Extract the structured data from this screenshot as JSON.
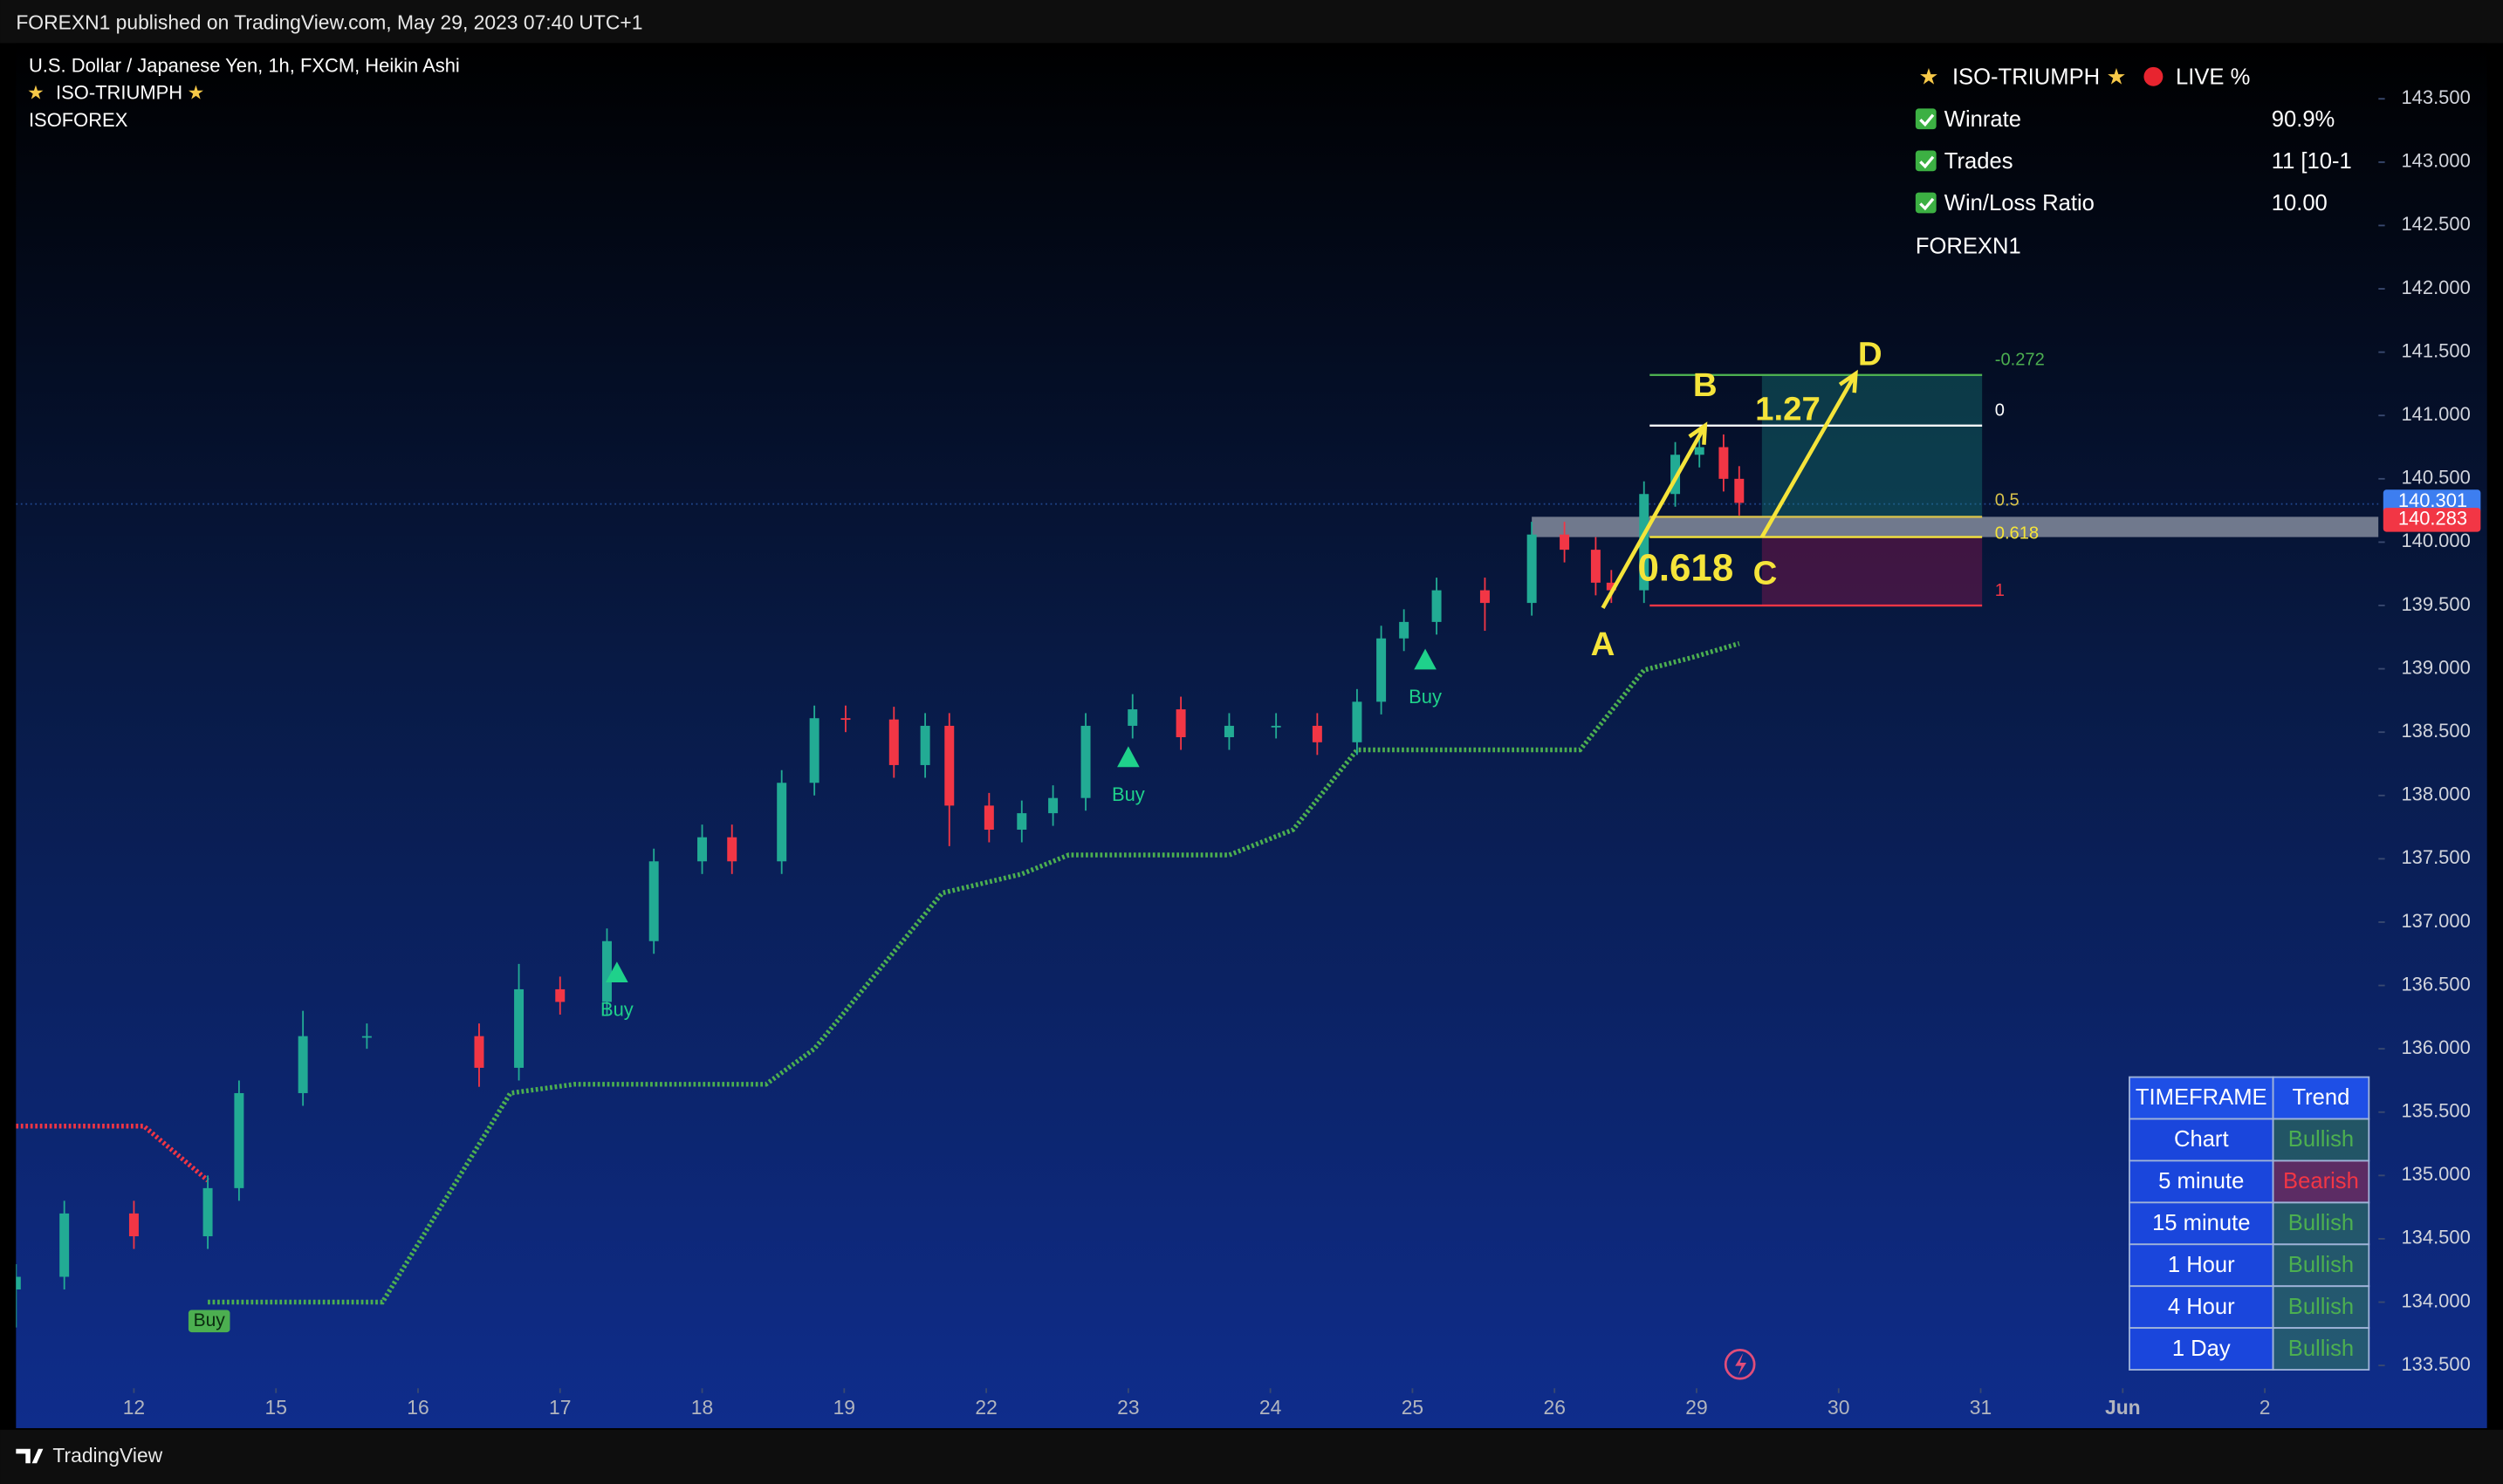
{
  "header": {
    "publisher": "FOREXN1 published on TradingView.com, May 29, 2023 07:40 UTC+1",
    "footer": "TradingView"
  },
  "chart_data": {
    "type": "candlestick",
    "title": "U.S. Dollar / Japanese Yen, 1h, FXCM, Heikin Ashi",
    "indicators": [
      "ISO-TRIUMPH",
      "ISOFOREX"
    ],
    "x": [
      -0.83,
      -0.49,
      0,
      0.52,
      0.74,
      1.19,
      1.64,
      2.43,
      2.71,
      3.0,
      3.33,
      3.66,
      4.0,
      4.21,
      4.56,
      4.79,
      5.01,
      5.35,
      5.57,
      5.74,
      6.02,
      6.25,
      6.47,
      6.7,
      7.03,
      7.37,
      7.71,
      8.04,
      8.33,
      8.61,
      8.78,
      8.94,
      9.17,
      9.51,
      9.84,
      10.07,
      10.29,
      10.4,
      10.63,
      10.85,
      11.02,
      11.19,
      11.3
    ],
    "open": [
      134.1,
      134.2,
      134.7,
      134.52,
      134.9,
      135.65,
      136.1,
      136.1,
      135.85,
      136.47,
      136.37,
      136.85,
      137.48,
      137.67,
      137.48,
      138.1,
      138.61,
      138.6,
      138.24,
      138.55,
      137.92,
      137.73,
      137.86,
      137.98,
      138.55,
      138.68,
      138.46,
      138.55,
      138.55,
      138.42,
      138.74,
      139.24,
      139.37,
      139.62,
      139.52,
      140.06,
      139.94,
      139.68,
      139.62,
      140.38,
      140.69,
      140.75,
      140.5
    ],
    "high": [
      134.3,
      134.8,
      134.8,
      135.0,
      135.75,
      136.3,
      136.2,
      136.2,
      136.67,
      136.57,
      136.95,
      137.58,
      137.77,
      137.77,
      138.2,
      138.71,
      138.71,
      138.7,
      138.65,
      138.65,
      138.02,
      137.96,
      138.08,
      138.65,
      138.8,
      138.78,
      138.65,
      138.65,
      138.65,
      138.84,
      139.34,
      139.47,
      139.72,
      139.72,
      140.16,
      140.16,
      140.04,
      139.78,
      140.48,
      140.79,
      140.9,
      140.85,
      140.6
    ],
    "low": [
      133.8,
      134.1,
      134.42,
      134.42,
      134.8,
      135.55,
      136.0,
      135.7,
      135.75,
      136.27,
      136.27,
      136.75,
      137.38,
      137.38,
      137.38,
      138.0,
      138.5,
      138.14,
      138.14,
      137.6,
      137.63,
      137.63,
      137.76,
      137.88,
      138.45,
      138.36,
      138.36,
      138.45,
      138.32,
      138.32,
      138.64,
      139.14,
      139.27,
      139.3,
      139.42,
      139.84,
      139.58,
      139.52,
      139.52,
      140.28,
      140.59,
      140.4,
      140.21
    ],
    "close": [
      134.2,
      134.7,
      134.52,
      134.9,
      135.65,
      136.1,
      136.1,
      135.85,
      136.47,
      136.37,
      136.85,
      137.48,
      137.67,
      137.48,
      138.1,
      138.61,
      138.6,
      138.24,
      138.55,
      137.92,
      137.73,
      137.86,
      137.98,
      138.55,
      138.68,
      138.46,
      138.55,
      138.55,
      138.42,
      138.74,
      139.24,
      139.37,
      139.62,
      139.52,
      140.06,
      139.94,
      139.68,
      139.62,
      140.38,
      140.69,
      140.75,
      140.5,
      140.31
    ],
    "up_color": "#22ab94",
    "down_color": "#f23645",
    "xlim": [
      -0.83,
      15.8
    ],
    "xticks": [
      {
        "value": 0,
        "label": "12"
      },
      {
        "value": 1,
        "label": "15"
      },
      {
        "value": 2,
        "label": "16"
      },
      {
        "value": 3,
        "label": "17"
      },
      {
        "value": 4,
        "label": "18"
      },
      {
        "value": 5,
        "label": "19"
      },
      {
        "value": 6,
        "label": "22"
      },
      {
        "value": 7,
        "label": "23"
      },
      {
        "value": 8,
        "label": "24"
      },
      {
        "value": 9,
        "label": "25"
      },
      {
        "value": 10,
        "label": "26"
      },
      {
        "value": 11,
        "label": "29"
      },
      {
        "value": 12,
        "label": "30"
      },
      {
        "value": 13,
        "label": "31"
      },
      {
        "value": 14,
        "label": "Jun"
      },
      {
        "value": 15,
        "label": "2"
      }
    ],
    "ylim": [
      133.32,
      143.94
    ],
    "yticks": [
      {
        "value": 133.5,
        "label": "133.500"
      },
      {
        "value": 134,
        "label": "134.000"
      },
      {
        "value": 134.5,
        "label": "134.500"
      },
      {
        "value": 135,
        "label": "135.000"
      },
      {
        "value": 135.5,
        "label": "135.500"
      },
      {
        "value": 136,
        "label": "136.000"
      },
      {
        "value": 136.5,
        "label": "136.500"
      },
      {
        "value": 137,
        "label": "137.000"
      },
      {
        "value": 137.5,
        "label": "137.500"
      },
      {
        "value": 138,
        "label": "138.000"
      },
      {
        "value": 138.5,
        "label": "138.500"
      },
      {
        "value": 139,
        "label": "139.000"
      },
      {
        "value": 139.5,
        "label": "139.500"
      },
      {
        "value": 140,
        "label": "140.000"
      },
      {
        "value": 140.5,
        "label": "140.500"
      },
      {
        "value": 141,
        "label": "141.000"
      },
      {
        "value": 141.5,
        "label": "141.500"
      },
      {
        "value": 142,
        "label": "142.000"
      },
      {
        "value": 142.5,
        "label": "142.500"
      },
      {
        "value": 143,
        "label": "143.000"
      },
      {
        "value": 143.5,
        "label": "143.500"
      }
    ],
    "grid": false,
    "stop_lines": [
      {
        "color": "#4caf50",
        "x": [
          0.52,
          1.75,
          2.65,
          3.1,
          4.45,
          4.79,
          5.69,
          6.25,
          6.58,
          7.71,
          8.16,
          8.61,
          10.18,
          10.63,
          10.97,
          11.3
        ],
        "values": [
          134.0,
          134.0,
          135.65,
          135.72,
          135.72,
          136.0,
          137.23,
          137.38,
          137.53,
          137.53,
          137.73,
          138.36,
          138.36,
          138.99,
          139.09,
          139.2
        ]
      },
      {
        "color": "#f23645",
        "x": [
          -0.83,
          0.07,
          0.52
        ],
        "values": [
          135.39,
          135.39,
          134.96
        ]
      }
    ],
    "signals": {
      "labels": [
        "Buy",
        "Buy",
        "Buy",
        "Buy"
      ],
      "styles": [
        "box",
        "triangle",
        "triangle",
        "triangle"
      ],
      "x": [
        0.53,
        3.4,
        7.0,
        9.09
      ],
      "values": [
        133.85,
        136.6,
        138.3,
        139.07
      ],
      "color": "#1fd18b"
    },
    "price_tags": [
      {
        "value": 140.301,
        "color": "#3d7ef0"
      },
      {
        "value": 140.283,
        "color": "#f23645"
      }
    ],
    "fibonacci": {
      "x_range": [
        10.67,
        13.01
      ],
      "levels": [
        {
          "label": "-0.272",
          "price": 141.32,
          "color": "#4caf50"
        },
        {
          "label": "0",
          "price": 140.92,
          "color": "#ffffff"
        },
        {
          "label": "0.5",
          "price": 140.2,
          "color": "#d8c24b"
        },
        {
          "label": "0.618",
          "price": 140.04,
          "color": "#f5e43a"
        },
        {
          "label": "1",
          "price": 139.5,
          "color": "#f23645"
        }
      ]
    },
    "abcd": {
      "points": [
        {
          "label": "A",
          "x": 10.34,
          "value": 139.48
        },
        {
          "label": "B",
          "x": 11.06,
          "value": 140.92
        },
        {
          "label": "C",
          "x": 11.46,
          "value": 140.04
        },
        {
          "label": "D",
          "x": 12.12,
          "value": 141.33
        }
      ],
      "ratios": [
        "0.618",
        "1.27"
      ]
    }
  },
  "performance_table": {
    "title": "ISO-TRIUMPH",
    "status": "LIVE %",
    "rows": [
      [
        "Winrate",
        "90.9%"
      ],
      [
        "Trades",
        "11 [10-1"
      ],
      [
        "Win/Loss Ratio",
        "10.00"
      ]
    ],
    "footer": "FOREXN1"
  },
  "trend_table": {
    "header": [
      "TIMEFRAME",
      "Trend"
    ],
    "rows": [
      {
        "timeframe": "Chart",
        "trend": "Bullish",
        "color": "#4caf50"
      },
      {
        "timeframe": "5 minute",
        "trend": "Bearish",
        "color": "#f23645"
      },
      {
        "timeframe": "15 minute",
        "trend": "Bullish",
        "color": "#4caf50"
      },
      {
        "timeframe": "1 Hour",
        "trend": "Bullish",
        "color": "#4caf50"
      },
      {
        "timeframe": "4 Hour",
        "trend": "Bullish",
        "color": "#4caf50"
      },
      {
        "timeframe": "1 Day",
        "trend": "Bullish",
        "color": "#4caf50"
      }
    ]
  }
}
